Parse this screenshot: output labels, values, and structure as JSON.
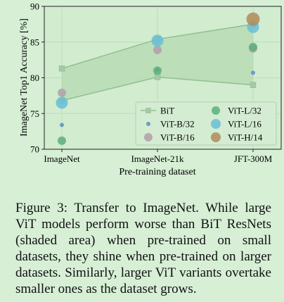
{
  "chart_data": {
    "type": "scatter",
    "xlabel": "Pre-training dataset",
    "ylabel": "ImageNet Top1 Accuracy [%]",
    "categories": [
      "ImageNet",
      "ImageNet-21k",
      "JFT-300M"
    ],
    "ylim": [
      70,
      90
    ],
    "yticks": [
      70,
      75,
      80,
      85,
      90
    ],
    "grid": true,
    "legend_position": "bottom-right",
    "bit": {
      "name": "BiT",
      "upper": [
        81.3,
        85.4,
        87.5
      ],
      "lower": [
        76.8,
        80.1,
        79.0
      ],
      "color": "#8fc08f"
    },
    "series": [
      {
        "name": "ViT-B/32",
        "color": "#5b8fc4",
        "size": 3,
        "values": [
          73.4,
          81.1,
          80.7
        ]
      },
      {
        "name": "ViT-B/16",
        "color": "#b2a0a8",
        "size": 6,
        "values": [
          77.9,
          83.9,
          84.1
        ]
      },
      {
        "name": "ViT-L/32",
        "color": "#5bb07a",
        "size": 6,
        "values": [
          71.2,
          81.0,
          84.3
        ]
      },
      {
        "name": "ViT-L/16",
        "color": "#69bed6",
        "size": 8.5,
        "values": [
          76.5,
          85.2,
          87.1
        ]
      },
      {
        "name": "ViT-H/14",
        "color": "#b08b5c",
        "size": 9.5,
        "values": [
          null,
          null,
          88.2
        ]
      }
    ]
  },
  "caption": "Figure 3:  Transfer to ImageNet.  While large ViT models perform worse than BiT ResNets (shaded area) when pre-trained on small datasets, they shine when pre-trained on larger datasets. Similarly, larger ViT variants overtake smaller ones as the dataset grows."
}
